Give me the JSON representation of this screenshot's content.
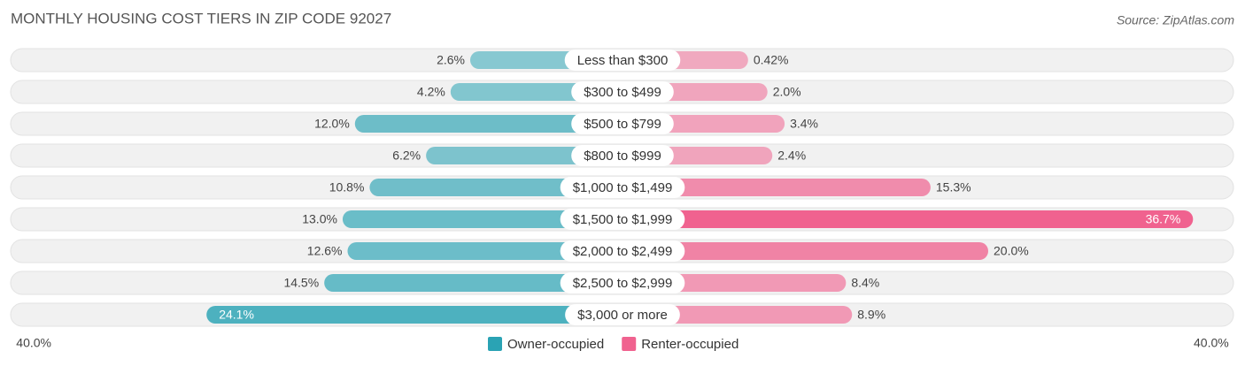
{
  "chart_data": {
    "type": "bar",
    "title": "MONTHLY HOUSING COST TIERS IN ZIP CODE 92027",
    "source": "Source: ZipAtlas.com",
    "categories": [
      "Less than $300",
      "$300 to $499",
      "$500 to $799",
      "$800 to $999",
      "$1,000 to $1,499",
      "$1,500 to $1,999",
      "$2,000 to $2,499",
      "$2,500 to $2,999",
      "$3,000 or more"
    ],
    "series": [
      {
        "name": "Owner-occupied",
        "color": "#2aa3b4",
        "side": "left",
        "values": [
          2.6,
          4.2,
          12.0,
          6.2,
          10.8,
          13.0,
          12.6,
          14.5,
          24.1
        ],
        "value_labels": [
          "2.6%",
          "4.2%",
          "12.0%",
          "6.2%",
          "10.8%",
          "13.0%",
          "12.6%",
          "14.5%",
          "24.1%"
        ]
      },
      {
        "name": "Renter-occupied",
        "color": "#f0628f",
        "side": "right",
        "values": [
          0.42,
          2.0,
          3.4,
          2.4,
          15.3,
          36.7,
          20.0,
          8.4,
          8.9
        ],
        "value_labels": [
          "0.42%",
          "2.0%",
          "3.4%",
          "2.4%",
          "15.3%",
          "36.7%",
          "20.0%",
          "8.4%",
          "8.9%"
        ]
      }
    ],
    "xlim": [
      0,
      40
    ],
    "xticks": [
      {
        "value": 40,
        "label": "40.0%"
      }
    ]
  }
}
